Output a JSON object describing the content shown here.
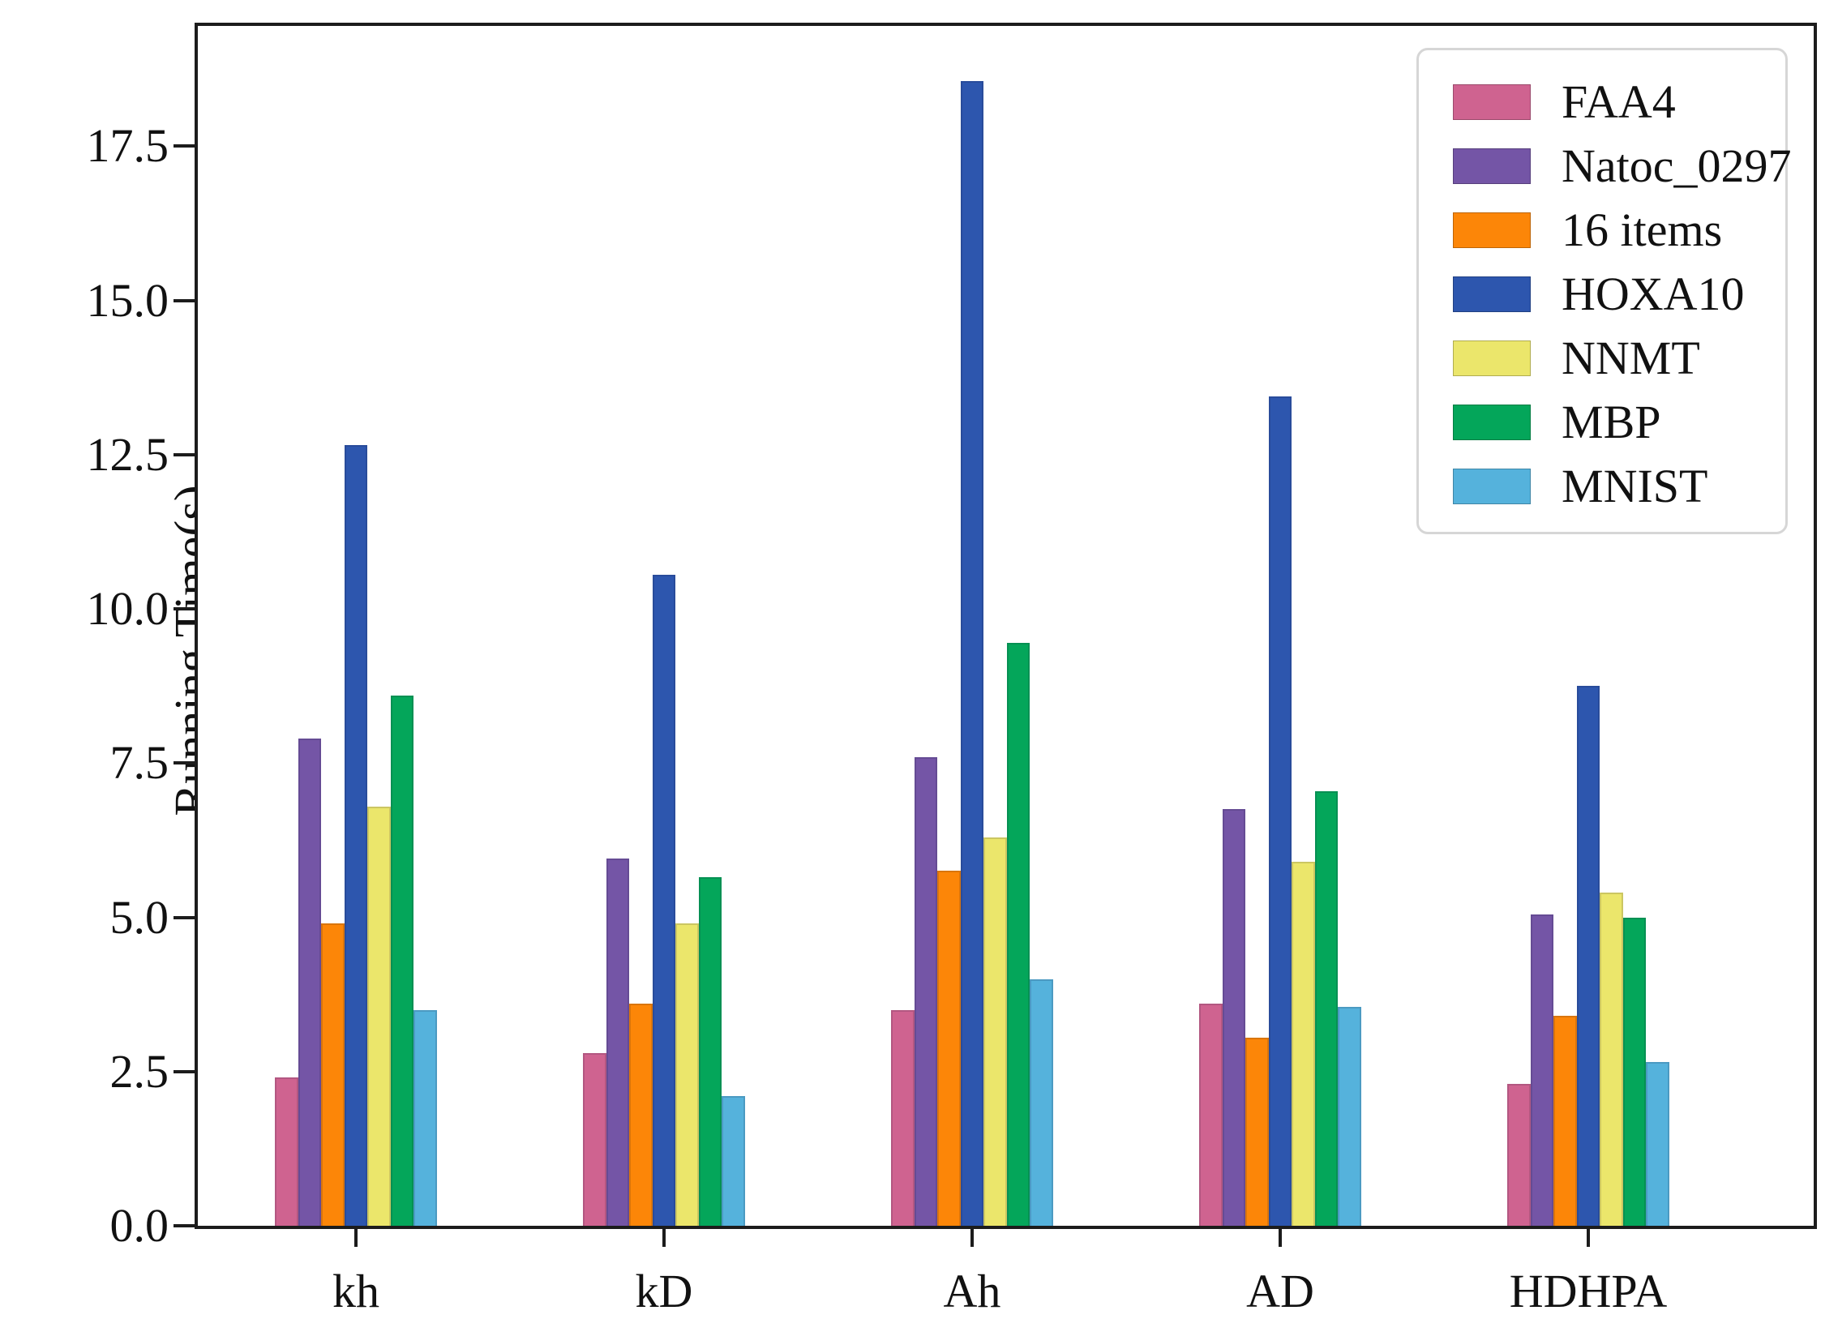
{
  "chart_data": {
    "type": "bar",
    "title": "",
    "xlabel": "",
    "ylabel": "Running Time(s)",
    "categories": [
      "kh",
      "kD",
      "Ah",
      "AD",
      "HDHPA"
    ],
    "series": [
      {
        "name": "FAA4",
        "color": "#cf6390",
        "values": [
          2.4,
          2.8,
          3.5,
          3.6,
          2.3
        ]
      },
      {
        "name": "Natoc_0297",
        "color": "#7455a6",
        "values": [
          7.9,
          5.95,
          7.6,
          6.75,
          5.05
        ]
      },
      {
        "name": "16 items",
        "color": "#fc8608",
        "values": [
          4.9,
          3.6,
          5.75,
          3.05,
          3.4
        ]
      },
      {
        "name": "HOXA10",
        "color": "#2d56ae",
        "values": [
          12.65,
          10.55,
          18.55,
          13.45,
          8.75
        ]
      },
      {
        "name": "NNMT",
        "color": "#ebe66b",
        "values": [
          6.8,
          4.9,
          6.3,
          5.9,
          5.4
        ]
      },
      {
        "name": "MBP",
        "color": "#04a65a",
        "values": [
          8.6,
          5.65,
          9.45,
          7.05,
          5.0
        ]
      },
      {
        "name": "MNIST",
        "color": "#55b2dc",
        "values": [
          3.5,
          2.1,
          4.0,
          3.55,
          2.65
        ]
      }
    ],
    "yticks": [
      0.0,
      2.5,
      5.0,
      7.5,
      10.0,
      12.5,
      15.0,
      17.5
    ],
    "ytick_labels": [
      "0.0",
      "2.5",
      "5.0",
      "7.5",
      "10.0",
      "12.5",
      "15.0",
      "17.5"
    ],
    "ylim": [
      0,
      19.45
    ],
    "grid": false,
    "legend_position": "upper right"
  }
}
